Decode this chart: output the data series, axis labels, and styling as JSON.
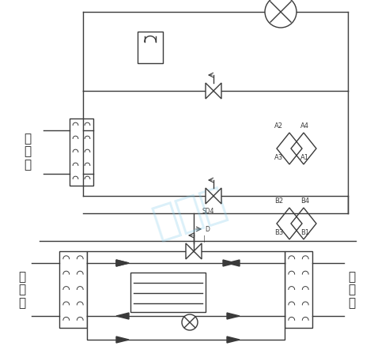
{
  "bg_color": "#ffffff",
  "line_color": "#3a3a3a",
  "watermark_color": "#87ceeb",
  "text_color": "#222222",
  "figsize": [
    4.73,
    4.38
  ],
  "dpi": 100,
  "label_reshui": "热\n水\n侧",
  "label_fuhe": "负\n荷\n侧",
  "label_reyuan": "热\n源\n侧",
  "font_size_side": 11,
  "font_size_label": 6.0,
  "font_size_sd4": 5.5
}
